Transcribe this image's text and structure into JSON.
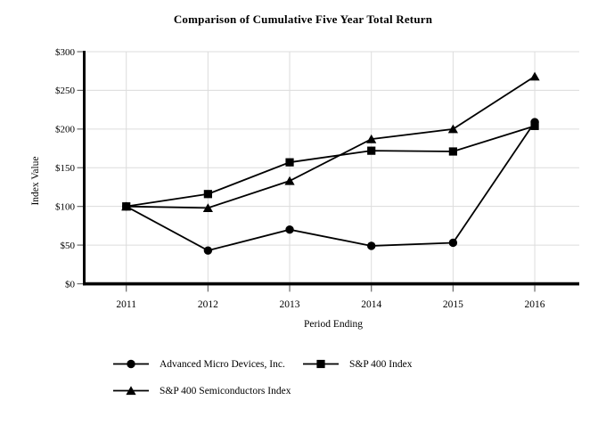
{
  "chart_data": {
    "type": "line",
    "title": "Comparison of Cumulative Five Year Total Return",
    "xlabel": "Period Ending",
    "ylabel": "Index Value",
    "categories": [
      "2011",
      "2012",
      "2013",
      "2014",
      "2015",
      "2016"
    ],
    "series": [
      {
        "name": "Advanced Micro Devices, Inc.",
        "marker": "circle",
        "values": [
          100,
          43,
          70,
          49,
          53,
          209
        ]
      },
      {
        "name": "S&P 400 Index",
        "marker": "square",
        "values": [
          100,
          116,
          157,
          172,
          171,
          204
        ]
      },
      {
        "name": "S&P 400 Semiconductors Index",
        "marker": "triangle",
        "values": [
          100,
          98,
          133,
          187,
          200,
          268
        ]
      }
    ],
    "ylim": [
      0,
      300
    ],
    "yticks": [
      0,
      50,
      100,
      150,
      200,
      250,
      300
    ],
    "ytick_labels": [
      "$0",
      "$50",
      "$100",
      "$150",
      "$200",
      "$250",
      "$300"
    ],
    "grid": true,
    "legend_position": "bottom",
    "colors": {
      "line": "#000000",
      "marker": "#000000",
      "grid": "#dcdcdc",
      "tick": "#6b6b6b",
      "axis": "#000000",
      "background": "#ffffff"
    }
  }
}
